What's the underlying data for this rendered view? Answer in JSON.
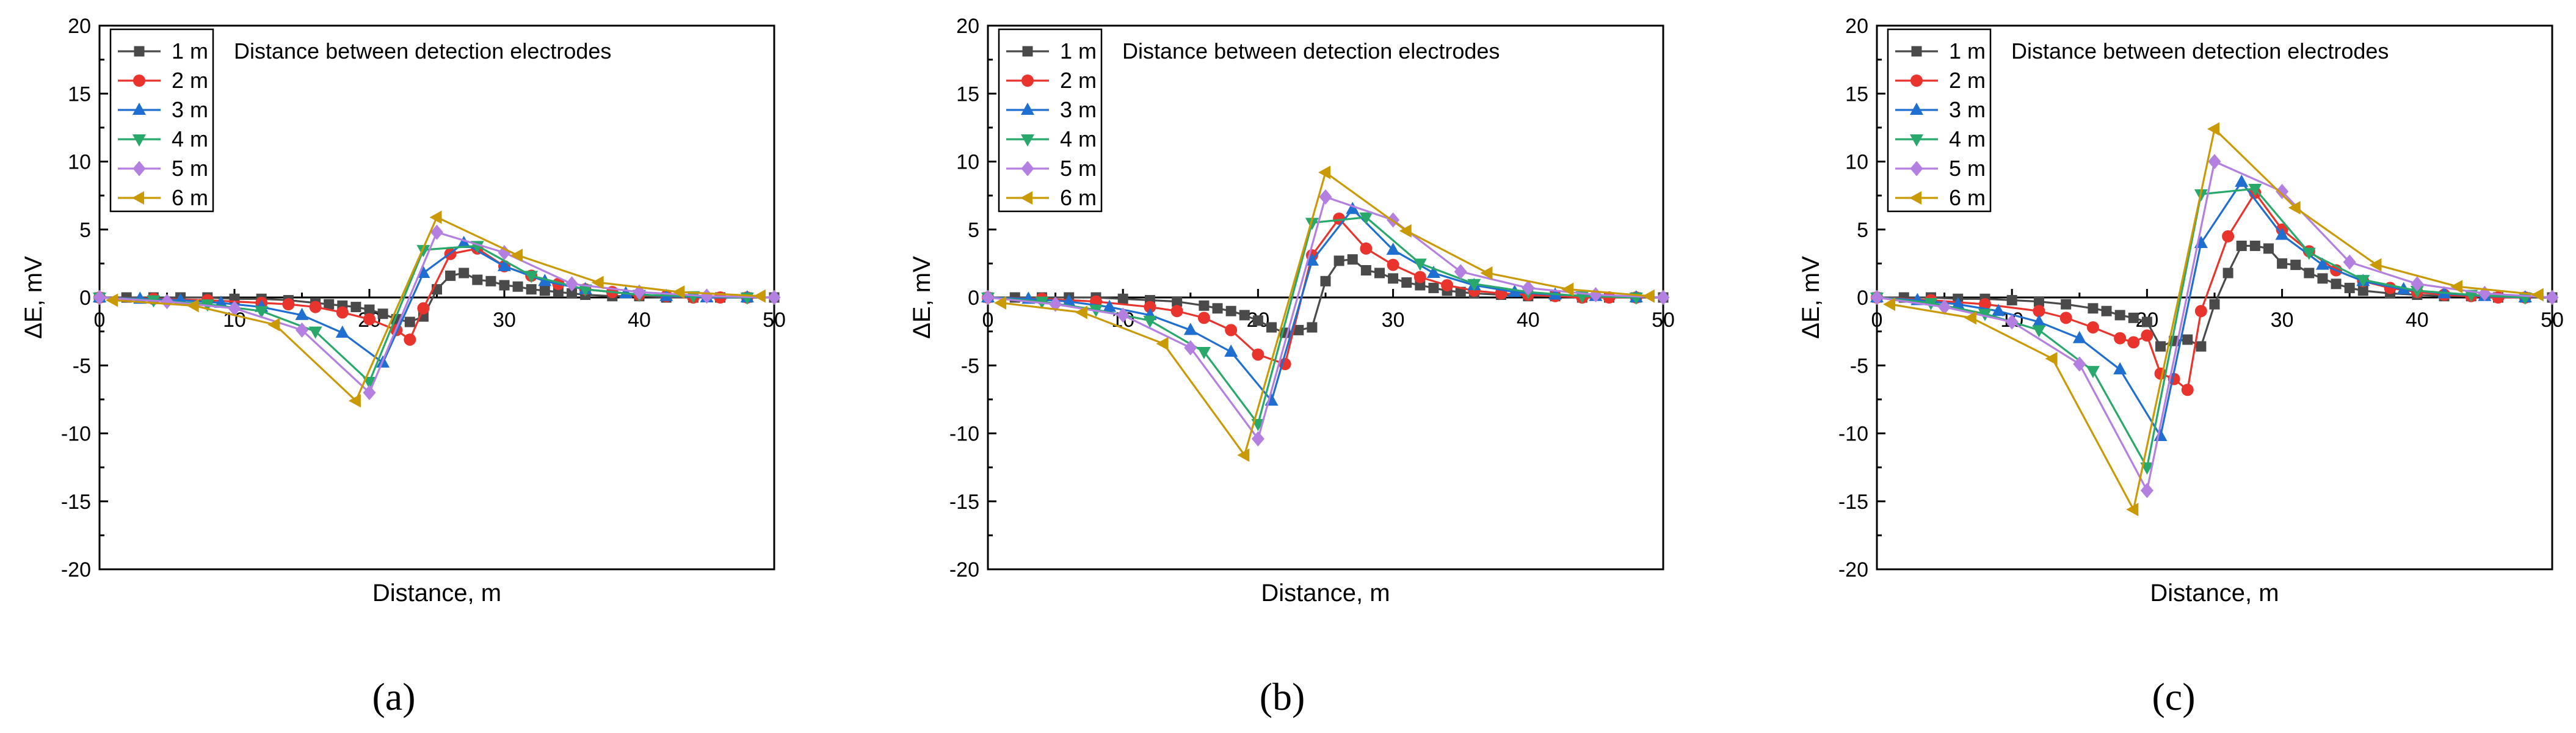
{
  "colors": {
    "1 m": "#4a4a4a",
    "2 m": "#e8342c",
    "3 m": "#1f6fd0",
    "4 m": "#28a86b",
    "5 m": "#b37fe0",
    "6 m": "#c99a06"
  },
  "chart_data": [
    {
      "type": "line",
      "panel_label": "(a)",
      "title": "Distance between detection electrodes",
      "xlabel": "Distance, m",
      "ylabel": "ΔE, mV",
      "xlim": [
        0,
        50
      ],
      "ylim": [
        -20,
        20
      ],
      "xticks": [
        0,
        10,
        20,
        30,
        40,
        50
      ],
      "yticks": [
        -20,
        -15,
        -10,
        -5,
        0,
        5,
        10,
        15,
        20
      ],
      "legend_position": "top-left",
      "series": [
        {
          "name": "1 m",
          "marker": "square",
          "x": [
            0,
            2,
            4,
            6,
            8,
            10,
            12,
            14,
            16,
            17,
            18,
            19,
            20,
            21,
            22,
            23,
            24,
            25,
            26,
            27,
            28,
            29,
            30,
            31,
            32,
            33,
            34,
            35,
            36,
            38,
            40,
            42,
            44,
            46,
            48,
            50
          ],
          "y": [
            0,
            0,
            0,
            0,
            0,
            -0.1,
            -0.1,
            -0.2,
            -0.4,
            -0.5,
            -0.6,
            -0.7,
            -0.9,
            -1.2,
            -1.6,
            -1.8,
            -1.4,
            0.6,
            1.6,
            1.8,
            1.3,
            1.2,
            0.9,
            0.8,
            0.6,
            0.5,
            0.4,
            0.3,
            0.2,
            0.1,
            0.1,
            0,
            0,
            0,
            0,
            0
          ]
        },
        {
          "name": "2 m",
          "marker": "circle",
          "x": [
            0,
            4,
            8,
            12,
            14,
            16,
            18,
            20,
            22,
            23,
            24,
            26,
            28,
            30,
            32,
            34,
            36,
            38,
            40,
            42,
            44,
            46,
            48
          ],
          "y": [
            0,
            -0.1,
            -0.2,
            -0.4,
            -0.5,
            -0.7,
            -1.1,
            -1.6,
            -2.4,
            -3.1,
            -0.8,
            3.2,
            3.6,
            2.3,
            1.6,
            1.0,
            0.6,
            0.4,
            0.2,
            0.1,
            0,
            0,
            0
          ]
        },
        {
          "name": "3 m",
          "marker": "triangle-up",
          "x": [
            0,
            3,
            6,
            9,
            12,
            15,
            18,
            21,
            24,
            27,
            30,
            33,
            36,
            39,
            42,
            45,
            48
          ],
          "y": [
            0,
            -0.1,
            -0.2,
            -0.4,
            -0.7,
            -1.3,
            -2.6,
            -4.8,
            1.8,
            4.0,
            2.3,
            1.2,
            0.6,
            0.3,
            0.1,
            0,
            0
          ]
        },
        {
          "name": "4 m",
          "marker": "triangle-down",
          "x": [
            0,
            4,
            8,
            12,
            16,
            20,
            24,
            28,
            32,
            36,
            40,
            44,
            48
          ],
          "y": [
            0,
            -0.2,
            -0.5,
            -1.0,
            -2.5,
            -6.2,
            3.5,
            3.8,
            1.6,
            0.6,
            0.2,
            0.1,
            0
          ]
        },
        {
          "name": "5 m",
          "marker": "diamond",
          "x": [
            0,
            5,
            10,
            15,
            20,
            25,
            30,
            35,
            40,
            45,
            50
          ],
          "y": [
            0,
            -0.3,
            -0.8,
            -2.4,
            -7.0,
            4.8,
            3.3,
            1.0,
            0.4,
            0.1,
            0
          ]
        },
        {
          "name": "6 m",
          "marker": "triangle-left",
          "x": [
            1,
            7,
            13,
            19,
            25,
            31,
            37,
            43,
            49
          ],
          "y": [
            -0.2,
            -0.6,
            -2.0,
            -7.6,
            5.9,
            3.1,
            1.1,
            0.4,
            0.1
          ]
        }
      ]
    },
    {
      "type": "line",
      "panel_label": "(b)",
      "title": "Distance between detection electrodes",
      "xlabel": "Distance, m",
      "ylabel": "ΔE, mV",
      "xlim": [
        0,
        50
      ],
      "ylim": [
        -20,
        20
      ],
      "xticks": [
        0,
        10,
        20,
        30,
        40,
        50
      ],
      "yticks": [
        -20,
        -15,
        -10,
        -5,
        0,
        5,
        10,
        15,
        20
      ],
      "legend_position": "top-left",
      "series": [
        {
          "name": "1 m",
          "marker": "square",
          "x": [
            0,
            2,
            4,
            6,
            8,
            10,
            12,
            14,
            16,
            17,
            18,
            19,
            20,
            21,
            22,
            23,
            24,
            25,
            26,
            27,
            28,
            29,
            30,
            31,
            32,
            33,
            34,
            35,
            36,
            38,
            40,
            42,
            44,
            46,
            48,
            50
          ],
          "y": [
            0,
            0,
            0,
            0,
            0,
            -0.1,
            -0.2,
            -0.3,
            -0.6,
            -0.8,
            -1.0,
            -1.3,
            -1.7,
            -2.2,
            -2.6,
            -2.4,
            -2.2,
            1.2,
            2.7,
            2.8,
            2.0,
            1.8,
            1.4,
            1.1,
            0.9,
            0.7,
            0.5,
            0.4,
            0.3,
            0.2,
            0.1,
            0.1,
            0,
            0,
            0,
            0
          ]
        },
        {
          "name": "2 m",
          "marker": "circle",
          "x": [
            0,
            4,
            8,
            12,
            14,
            16,
            18,
            20,
            22,
            24,
            26,
            28,
            30,
            32,
            34,
            36,
            38,
            40,
            42,
            44,
            46,
            48
          ],
          "y": [
            0,
            -0.1,
            -0.3,
            -0.7,
            -1.0,
            -1.5,
            -2.4,
            -4.2,
            -4.9,
            3.1,
            5.8,
            3.6,
            2.4,
            1.5,
            0.9,
            0.5,
            0.3,
            0.2,
            0.1,
            0,
            0,
            0
          ]
        },
        {
          "name": "3 m",
          "marker": "triangle-up",
          "x": [
            0,
            3,
            6,
            9,
            12,
            15,
            18,
            21,
            24,
            27,
            30,
            33,
            36,
            39,
            42,
            45,
            48
          ],
          "y": [
            0,
            -0.1,
            -0.3,
            -0.7,
            -1.3,
            -2.4,
            -4.0,
            -7.6,
            2.7,
            6.5,
            3.5,
            1.8,
            0.9,
            0.4,
            0.2,
            0.1,
            0
          ]
        },
        {
          "name": "4 m",
          "marker": "triangle-down",
          "x": [
            0,
            4,
            8,
            12,
            16,
            20,
            24,
            28,
            32,
            36,
            40,
            44,
            48
          ],
          "y": [
            0,
            -0.3,
            -0.9,
            -1.7,
            -4.0,
            -9.3,
            5.5,
            5.9,
            2.5,
            1.0,
            0.4,
            0.1,
            0
          ]
        },
        {
          "name": "5 m",
          "marker": "diamond",
          "x": [
            0,
            5,
            10,
            15,
            20,
            25,
            30,
            35,
            40,
            45,
            50
          ],
          "y": [
            0,
            -0.5,
            -1.3,
            -3.7,
            -10.4,
            7.4,
            5.7,
            1.9,
            0.7,
            0.2,
            0
          ]
        },
        {
          "name": "6 m",
          "marker": "triangle-left",
          "x": [
            1,
            7,
            13,
            19,
            25,
            31,
            37,
            43,
            49
          ],
          "y": [
            -0.4,
            -1.1,
            -3.4,
            -11.6,
            9.2,
            4.9,
            1.8,
            0.6,
            0.1
          ]
        }
      ]
    },
    {
      "type": "line",
      "panel_label": "(c)",
      "title": "Distance between detection electrodes",
      "xlabel": "Distance, m",
      "ylabel": "ΔE, mV",
      "xlim": [
        0,
        50
      ],
      "ylim": [
        -20,
        20
      ],
      "xticks": [
        0,
        10,
        20,
        30,
        40,
        50
      ],
      "yticks": [
        -20,
        -15,
        -10,
        -5,
        0,
        5,
        10,
        15,
        20
      ],
      "legend_position": "top-left",
      "series": [
        {
          "name": "1 m",
          "marker": "square",
          "x": [
            0,
            2,
            4,
            6,
            8,
            10,
            12,
            14,
            16,
            17,
            18,
            19,
            20,
            21,
            22,
            23,
            24,
            25,
            26,
            27,
            28,
            29,
            30,
            31,
            32,
            33,
            34,
            35,
            36,
            38,
            40,
            42,
            44,
            46,
            48,
            50
          ],
          "y": [
            0,
            0,
            0,
            -0.1,
            -0.1,
            -0.2,
            -0.3,
            -0.5,
            -0.8,
            -1.0,
            -1.3,
            -1.5,
            -1.8,
            -3.6,
            -3.2,
            -3.1,
            -3.6,
            -0.5,
            1.8,
            3.8,
            3.8,
            3.6,
            2.5,
            2.4,
            1.8,
            1.4,
            1.0,
            0.7,
            0.5,
            0.3,
            0.2,
            0.1,
            0.1,
            0,
            0,
            0
          ]
        },
        {
          "name": "2 m",
          "marker": "circle",
          "x": [
            0,
            4,
            8,
            12,
            14,
            16,
            18,
            19,
            20,
            21,
            22,
            23,
            24,
            26,
            28,
            30,
            32,
            34,
            36,
            38,
            40,
            42,
            44,
            46,
            48
          ],
          "y": [
            0,
            -0.2,
            -0.5,
            -1.0,
            -1.5,
            -2.2,
            -3.0,
            -3.3,
            -2.8,
            -5.6,
            -6.0,
            -6.8,
            -1.0,
            4.5,
            7.7,
            5.0,
            3.4,
            2.0,
            1.2,
            0.7,
            0.4,
            0.2,
            0.1,
            0,
            0
          ]
        },
        {
          "name": "3 m",
          "marker": "triangle-up",
          "x": [
            0,
            3,
            6,
            9,
            12,
            15,
            18,
            21,
            24,
            27,
            30,
            33,
            36,
            39,
            42,
            45,
            48
          ],
          "y": [
            0,
            -0.2,
            -0.5,
            -1.0,
            -1.8,
            -3.0,
            -5.3,
            -10.2,
            4.0,
            8.5,
            4.6,
            2.4,
            1.2,
            0.6,
            0.3,
            0.1,
            0
          ]
        },
        {
          "name": "4 m",
          "marker": "triangle-down",
          "x": [
            0,
            4,
            8,
            12,
            16,
            20,
            24,
            28,
            32,
            36,
            40,
            44,
            48
          ],
          "y": [
            0,
            -0.4,
            -1.2,
            -2.4,
            -5.4,
            -12.5,
            7.6,
            8.0,
            3.3,
            1.3,
            0.5,
            0.2,
            0
          ]
        },
        {
          "name": "5 m",
          "marker": "diamond",
          "x": [
            0,
            5,
            10,
            15,
            20,
            25,
            30,
            35,
            40,
            45,
            50
          ],
          "y": [
            0,
            -0.7,
            -1.8,
            -4.9,
            -14.2,
            10.0,
            7.8,
            2.6,
            1.0,
            0.3,
            0
          ]
        },
        {
          "name": "6 m",
          "marker": "triangle-left",
          "x": [
            1,
            7,
            13,
            19,
            25,
            31,
            37,
            43,
            49
          ],
          "y": [
            -0.5,
            -1.5,
            -4.5,
            -15.6,
            12.4,
            6.6,
            2.4,
            0.8,
            0.2
          ]
        }
      ]
    }
  ]
}
